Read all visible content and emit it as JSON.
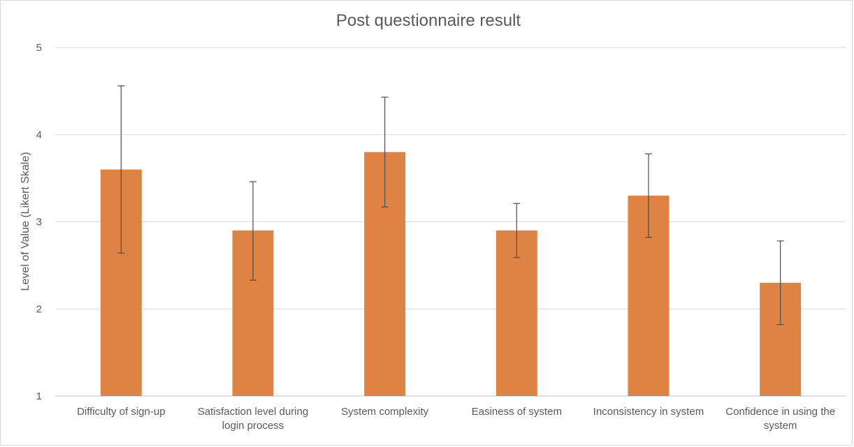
{
  "chart_data": {
    "type": "bar",
    "title": "Post questionnaire result",
    "xlabel": "",
    "ylabel": "Level of Value (Likert Skale)",
    "ylim": [
      1,
      5
    ],
    "yticks": [
      1,
      2,
      3,
      4,
      5
    ],
    "grid": true,
    "legend": "none",
    "bar_color": "#DE8344",
    "error_bar_color": "#4D4D4D",
    "categories": [
      [
        "Difficulty of sign-up"
      ],
      [
        "Satisfaction level during",
        "login process"
      ],
      [
        "System complexity"
      ],
      [
        "Easiness of system"
      ],
      [
        "Inconsistency in system"
      ],
      [
        "Confidence in using the",
        "system"
      ]
    ],
    "values": [
      3.6,
      2.9,
      3.8,
      2.9,
      3.3,
      2.3
    ],
    "error_bars": [
      [
        2.64,
        4.56
      ],
      [
        2.33,
        3.46
      ],
      [
        3.17,
        4.43
      ],
      [
        2.59,
        3.21
      ],
      [
        2.82,
        3.78
      ],
      [
        1.82,
        2.78
      ]
    ]
  }
}
